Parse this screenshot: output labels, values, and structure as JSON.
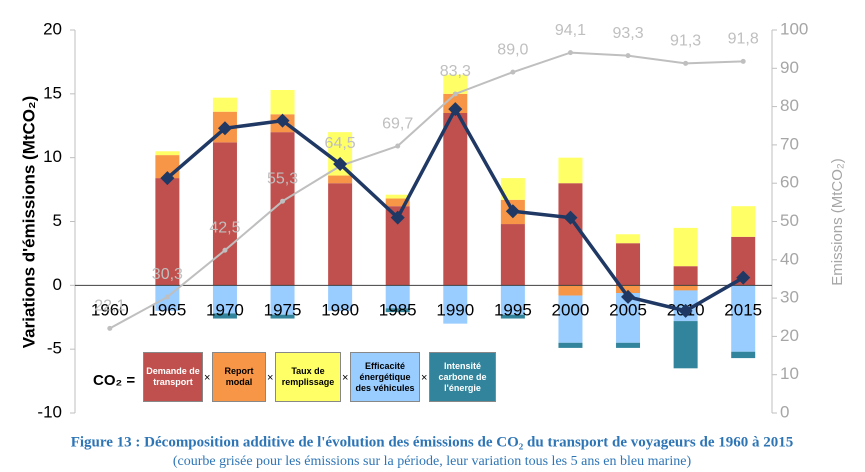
{
  "chart_data": {
    "type": "stacked-bar-line",
    "y_axis_label": "Variations d'émissions (MtCO₂)",
    "y2_axis_label": "Emissions (MtCO₂)",
    "caption": "Figure 13 : Décomposition additive de l'évolution des émissions de CO₂ du transport de voyageurs de 1960 à 2015",
    "subcaption": "(courbe grisée pour les émissions sur la période, leur variation tous les 5 ans en bleu marine)",
    "legend_prefix": "CO₂ =",
    "legend_operator": "×",
    "categories": [
      "1960",
      "1965",
      "1970",
      "1975",
      "1980",
      "1985",
      "1990",
      "1995",
      "2000",
      "2005",
      "2010",
      "2015"
    ],
    "series": [
      {
        "name": "Demande de transport",
        "color": "#c0504d",
        "text_color": "#ffffff",
        "values": [
          null,
          8.4,
          11.2,
          12.0,
          8.0,
          6.2,
          13.5,
          4.8,
          8.0,
          3.3,
          1.5,
          3.8
        ]
      },
      {
        "name": "Report modal",
        "color": "#f79646",
        "text_color": "#000000",
        "values": [
          null,
          1.8,
          2.4,
          1.4,
          0.6,
          0.6,
          1.5,
          1.9,
          -0.8,
          -0.6,
          -0.4,
          0
        ]
      },
      {
        "name": "Taux de remplissage",
        "color": "#ffff66",
        "text_color": "#000000",
        "values": [
          null,
          0.3,
          1.1,
          1.9,
          3.4,
          0.3,
          1.5,
          1.7,
          2.0,
          0.7,
          3.0,
          2.4
        ]
      },
      {
        "name": "Efficacité énergétique des véhicules",
        "color": "#99ccff",
        "text_color": "#000000",
        "values": [
          null,
          -2.0,
          -2.2,
          -2.3,
          -2.0,
          -1.8,
          -3.0,
          -2.3,
          -3.7,
          -3.9,
          -2.4,
          -5.2
        ]
      },
      {
        "name": "Intensité carbone de l'énergie",
        "color": "#31849b",
        "text_color": "#ffffff",
        "values": [
          null,
          0,
          -0.4,
          -0.3,
          0,
          -0.3,
          0,
          -0.3,
          -0.4,
          -0.4,
          -3.7,
          -0.5
        ]
      }
    ],
    "net_line": {
      "color": "#1f3864",
      "values": [
        null,
        8.4,
        12.3,
        12.9,
        9.5,
        5.3,
        13.8,
        5.8,
        5.3,
        -0.9,
        -2.0,
        0.6
      ]
    },
    "emissions_line": {
      "color": "#bfbfbf",
      "axis": "y2",
      "values": [
        22.1,
        30.3,
        42.5,
        55.3,
        64.5,
        69.7,
        83.3,
        89.0,
        94.1,
        93.3,
        91.3,
        91.8
      ],
      "value_labels": [
        "22,1",
        "30,3",
        "42,5",
        "55,3",
        "64,5",
        "69,7",
        "83,3",
        "89,0",
        "94,1",
        "93,3",
        "91,3",
        "91,8"
      ]
    },
    "ylim": [
      -10,
      20
    ],
    "yticks": [
      -10,
      -5,
      0,
      5,
      10,
      15,
      20
    ],
    "y2lim": [
      0,
      100
    ],
    "y2ticks": [
      0,
      10,
      20,
      30,
      40,
      50,
      60,
      70,
      80,
      90,
      100
    ]
  }
}
